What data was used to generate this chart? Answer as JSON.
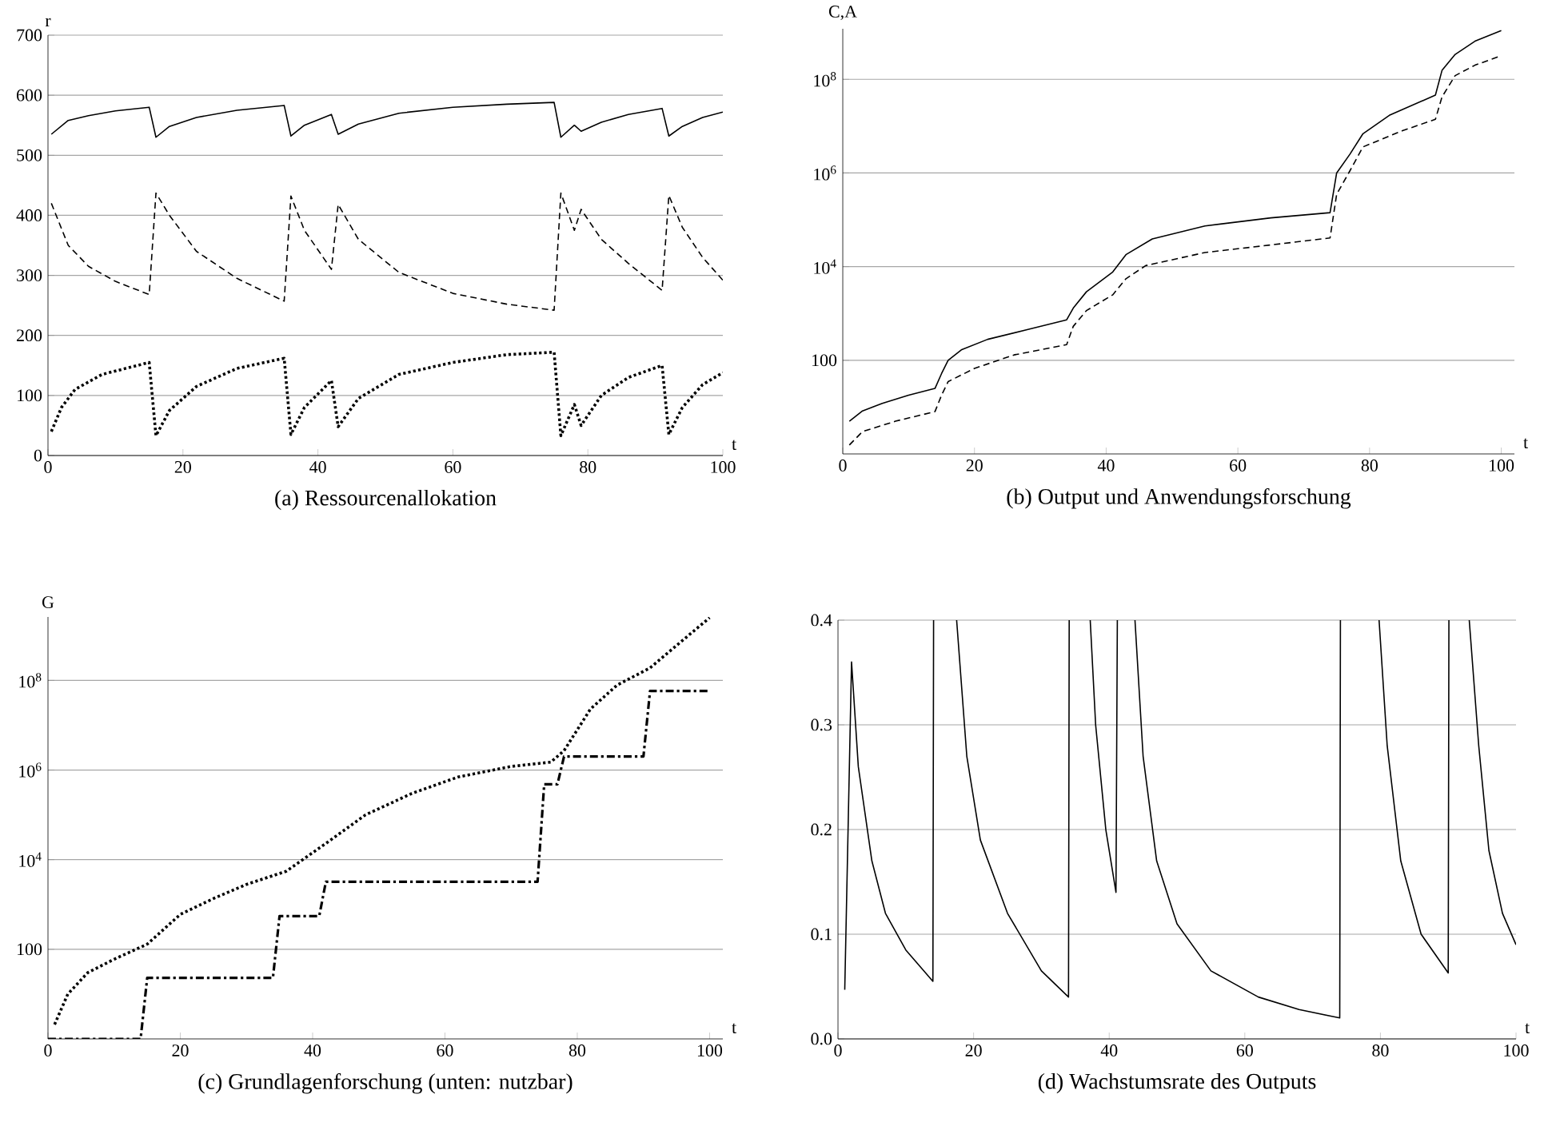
{
  "chart_data": [
    {
      "type": "line",
      "title": "(a)  Ressourcenallokation",
      "xlabel": "t",
      "ylabel": "r",
      "xlim": [
        0,
        100
      ],
      "ylim": [
        0,
        700
      ],
      "xticks": [
        0,
        20,
        40,
        60,
        80,
        100
      ],
      "yticks": [
        0,
        100,
        200,
        300,
        400,
        500,
        600,
        700
      ],
      "grid": "y",
      "series": [
        {
          "color": "#000000",
          "line_style": "solid",
          "x": [
            0.5,
            3,
            6,
            10,
            15,
            16,
            18,
            22,
            28,
            35,
            36,
            38,
            42,
            43,
            46,
            52,
            60,
            68,
            75,
            76,
            78,
            79,
            82,
            86,
            91,
            92,
            94,
            97,
            100
          ],
          "values": [
            535,
            558,
            566,
            574,
            580,
            530,
            548,
            563,
            575,
            583,
            532,
            550,
            568,
            535,
            552,
            570,
            580,
            585,
            588,
            530,
            550,
            540,
            555,
            568,
            578,
            532,
            548,
            563,
            572
          ]
        },
        {
          "color": "#000000",
          "line_style": "dashed",
          "x": [
            0.5,
            3,
            6,
            10,
            15,
            16,
            18,
            22,
            28,
            35,
            36,
            38,
            42,
            43,
            46,
            52,
            60,
            68,
            75,
            76,
            78,
            79,
            82,
            86,
            91,
            92,
            94,
            97,
            100
          ],
          "values": [
            420,
            350,
            315,
            290,
            268,
            437,
            400,
            340,
            295,
            257,
            432,
            375,
            310,
            418,
            360,
            305,
            270,
            252,
            242,
            437,
            375,
            410,
            360,
            320,
            275,
            433,
            380,
            330,
            292
          ]
        },
        {
          "color": "#000000",
          "line_style": "dotted",
          "x": [
            0.5,
            2,
            4,
            8,
            15,
            16,
            18,
            22,
            28,
            35,
            36,
            38,
            42,
            43,
            46,
            52,
            60,
            68,
            75,
            76,
            78,
            79,
            82,
            86,
            91,
            92,
            94,
            97,
            100
          ],
          "values": [
            40,
            80,
            110,
            135,
            155,
            33,
            75,
            115,
            145,
            162,
            35,
            80,
            125,
            48,
            95,
            135,
            155,
            168,
            172,
            33,
            85,
            50,
            100,
            130,
            150,
            35,
            80,
            118,
            138
          ]
        }
      ]
    },
    {
      "type": "line",
      "title": "(b)  Output und Anwendungsforschung",
      "xlabel": "t",
      "ylabel": "C,A",
      "log": "y",
      "xlim": [
        0,
        102
      ],
      "ylim": [
        1,
        1200000000
      ],
      "xticks": [
        0,
        20,
        40,
        60,
        80,
        100
      ],
      "yticks": [
        100,
        {
          "value": 10000,
          "label": "10$^{4}$"
        },
        {
          "value": 1000000,
          "label": "10$^{6}$"
        },
        {
          "value": 100000000,
          "label": "10$^{8}$"
        }
      ],
      "grid": "y",
      "series": [
        {
          "color": "#000000",
          "line_style": "solid",
          "x": [
            1,
            3,
            6,
            10,
            14,
            15,
            16,
            18,
            22,
            28,
            34,
            35,
            37,
            41,
            43,
            47,
            55,
            65,
            74,
            75,
            77,
            79,
            83,
            90,
            91,
            93,
            96,
            100
          ],
          "values": [
            5,
            8.3,
            12,
            18,
            25,
            52,
            100,
            167,
            280,
            450,
            730,
            1300,
            2900,
            7700,
            18000,
            39000,
            74000,
            110000,
            142000,
            1000000,
            2500000,
            6900000,
            17000000,
            46000000,
            155000000,
            340000000,
            650000000,
            1100000000
          ]
        },
        {
          "color": "#000000",
          "line_style": "dashed",
          "x": [
            1,
            3,
            8,
            14,
            15,
            16,
            20,
            26,
            34,
            35,
            37,
            41,
            43,
            46,
            55,
            65,
            74,
            75,
            77,
            79,
            85,
            90,
            91,
            93,
            96,
            100
          ],
          "values": [
            1.55,
            3,
            5,
            8,
            18,
            35,
            67,
            130,
            215,
            530,
            1150,
            2500,
            5500,
            10500,
            20000,
            29000,
            41000,
            350000,
            1100000,
            3600000,
            8000000,
            14000000,
            42000000,
            120000000,
            200000000,
            320000000
          ]
        }
      ]
    },
    {
      "type": "line",
      "title": "(c)  Grundlagenforschung (unten: nutzbar)",
      "xlabel": "t",
      "ylabel": "G",
      "log": "y",
      "xlim": [
        0,
        102
      ],
      "ylim": [
        1,
        2600000000
      ],
      "xticks": [
        0,
        20,
        40,
        60,
        80,
        100
      ],
      "yticks": [
        100,
        {
          "value": 10000,
          "label": "10$^{4}$"
        },
        {
          "value": 1000000,
          "label": "10$^{6}$"
        },
        {
          "value": 100000000,
          "label": "10$^{8}$"
        }
      ],
      "grid": "y",
      "series": [
        {
          "color": "#000000",
          "line_style": "dotted",
          "x": [
            1,
            3,
            6,
            10,
            15,
            20,
            25,
            30,
            36,
            42,
            48,
            55,
            62,
            70,
            76,
            78,
            82,
            86,
            91,
            95,
            100
          ],
          "values": [
            2.1,
            10,
            30,
            60,
            130,
            600,
            1350,
            2800,
            5500,
            23000,
            100000,
            300000,
            700000,
            1200000,
            1500000,
            2700000,
            23000000,
            78000000,
            190000000,
            600000000,
            2500000000
          ]
        },
        {
          "color": "#000000",
          "line_style": "dashdot",
          "x": [
            0,
            14,
            15,
            34,
            35,
            41,
            42,
            74,
            75,
            77,
            78,
            90,
            91,
            100
          ],
          "values": [
            1,
            1,
            23,
            23,
            550,
            550,
            3200,
            3200,
            480000,
            480000,
            2000000,
            2000000,
            58000000,
            58000000
          ]
        }
      ]
    },
    {
      "type": "line",
      "title": "(d)  Wachstumsrate des Outputs",
      "xlabel": "t",
      "xlim": [
        0,
        100
      ],
      "ylim": [
        0,
        0.4
      ],
      "xticks": [
        0,
        20,
        40,
        60,
        80,
        100
      ],
      "yticks": [
        {
          "value": 0,
          "label": "0.0"
        },
        0.1,
        0.2,
        0.3,
        0.4
      ],
      "grid": "y",
      "series": [
        {
          "color": "#000000",
          "line_style": "solid",
          "x": [
            1,
            2,
            3,
            5,
            7,
            10,
            14,
            14.1,
            15,
            17.5,
            19,
            21,
            25,
            30,
            34,
            34.1,
            35,
            37.2,
            38,
            39.5,
            41,
            41.2,
            42,
            43.8,
            45,
            47,
            50,
            55,
            62,
            68,
            74,
            74.1,
            75,
            79.8,
            81,
            83,
            86,
            90,
            90.1,
            91,
            93.1,
            94.5,
            96,
            98,
            100
          ],
          "values": [
            0.047,
            0.36,
            0.26,
            0.17,
            0.12,
            0.085,
            0.055,
            0.4,
            null,
            0.4,
            0.27,
            0.19,
            0.12,
            0.065,
            0.04,
            0.4,
            null,
            0.4,
            0.3,
            0.2,
            0.14,
            0.4,
            null,
            0.4,
            0.27,
            0.17,
            0.11,
            0.065,
            0.04,
            0.028,
            0.02,
            0.4,
            null,
            0.4,
            0.28,
            0.17,
            0.1,
            0.063,
            0.4,
            null,
            0.4,
            0.28,
            0.18,
            0.12,
            0.09
          ]
        }
      ]
    }
  ]
}
